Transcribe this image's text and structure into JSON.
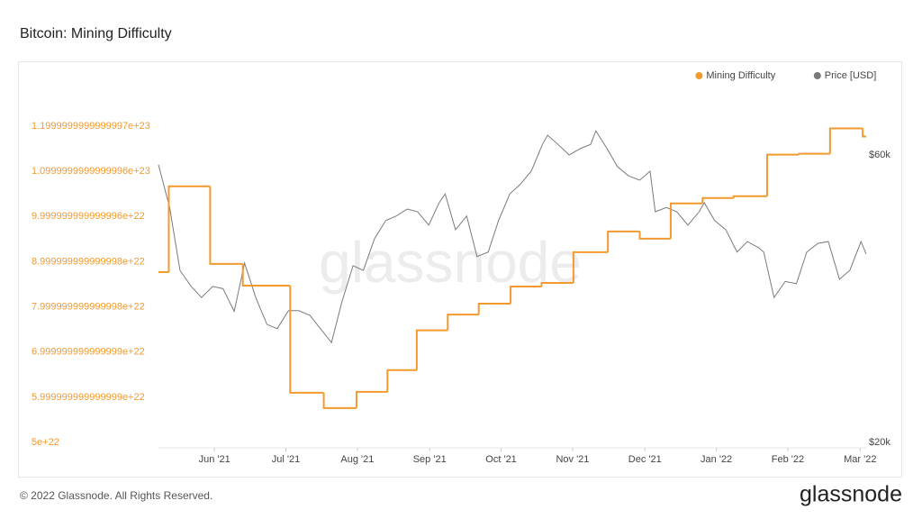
{
  "chart_data": {
    "type": "line",
    "title": "Bitcoin: Mining Difficulty",
    "watermark": "glassnode",
    "legend": "top-right",
    "ylim": [
      5e+22,
      1.2e+23
    ],
    "yticks": [
      {
        "value": 1.2e+23,
        "label": "1.1999999999999997e+23"
      },
      {
        "value": 1.1e+23,
        "label": "1.0999999999999996e+23"
      },
      {
        "value": 1e+23,
        "label": "9.999999999999996e+22"
      },
      {
        "value": 9e+22,
        "label": "8.999999999999998e+22"
      },
      {
        "value": 8e+22,
        "label": "7.999999999999998e+22"
      },
      {
        "value": 7e+22,
        "label": "6.999999999999999e+22"
      },
      {
        "value": 6e+22,
        "label": "5.999999999999999e+22"
      },
      5e+22
    ],
    "y2lim": [
      20000,
      67000
    ],
    "y2log": true,
    "y2ticks": [
      {
        "value": 60000,
        "label": "$60k"
      },
      {
        "value": 20000,
        "label": "$20k"
      }
    ],
    "xlim": [
      2021.352,
      2022.174
    ],
    "xticks": [
      {
        "value": 2021.417,
        "label": "Jun '21"
      },
      {
        "value": 2021.5,
        "label": "Jul '21"
      },
      {
        "value": 2021.583,
        "label": "Aug '21"
      },
      {
        "value": 2021.667,
        "label": "Sep '21"
      },
      {
        "value": 2021.75,
        "label": "Oct '21"
      },
      {
        "value": 2021.833,
        "label": "Nov '21"
      },
      {
        "value": 2021.917,
        "label": "Dec '21"
      },
      {
        "value": 2022.0,
        "label": "Jan '22"
      },
      {
        "value": 2022.083,
        "label": "Feb '22"
      },
      {
        "value": 2022.167,
        "label": "Mar '22"
      }
    ],
    "series": [
      {
        "name": "Mining Difficulty",
        "color": "#f29a2e",
        "step": "post",
        "x": [
          2021.352,
          2021.364,
          2021.412,
          2021.45,
          2021.505,
          2021.544,
          2021.582,
          2021.618,
          2021.652,
          2021.688,
          2021.724,
          2021.761,
          2021.797,
          2021.834,
          2021.874,
          2021.911,
          2021.947,
          2021.984,
          2022.02,
          2022.059,
          2022.096,
          2022.132,
          2022.17,
          2022.174
        ],
        "values": [
          8.77e+22,
          1.067e+23,
          8.95e+22,
          8.47e+22,
          6.1e+22,
          5.76e+22,
          6.12e+22,
          6.6e+22,
          7.48e+22,
          7.83e+22,
          8.07e+22,
          8.45e+22,
          8.53e+22,
          9.21e+22,
          9.67e+22,
          9.51e+22,
          1.029e+23,
          1.041e+23,
          1.045e+23,
          1.137e+23,
          1.139e+23,
          1.195e+23,
          1.177e+23,
          1.177e+23
        ]
      },
      {
        "name": "Price [USD]",
        "color": "#7a7a7a",
        "axis": "y2",
        "x": [
          2021.352,
          2021.365,
          2021.377,
          2021.39,
          2021.402,
          2021.415,
          2021.427,
          2021.44,
          2021.452,
          2021.465,
          2021.478,
          2021.49,
          2021.503,
          2021.515,
          2021.528,
          2021.54,
          2021.553,
          2021.565,
          2021.578,
          2021.59,
          2021.603,
          2021.616,
          2021.628,
          2021.641,
          2021.653,
          2021.666,
          2021.678,
          2021.685,
          2021.697,
          2021.71,
          2021.722,
          2021.735,
          2021.747,
          2021.76,
          2021.772,
          2021.785,
          2021.798,
          2021.804,
          2021.816,
          2021.829,
          2021.842,
          2021.854,
          2021.86,
          2021.873,
          2021.885,
          2021.898,
          2021.911,
          2021.923,
          2021.929,
          2021.942,
          2021.954,
          2021.967,
          2021.98,
          2021.986,
          2021.998,
          2022.011,
          2022.024,
          2022.036,
          2022.049,
          2022.055,
          2022.067,
          2022.08,
          2022.093,
          2022.105,
          2022.118,
          2022.13,
          2022.143,
          2022.155,
          2022.168,
          2022.174
        ],
        "values": [
          57800,
          49100,
          38600,
          36300,
          34800,
          36300,
          36000,
          33000,
          39700,
          34800,
          31400,
          30900,
          33100,
          33100,
          32500,
          30900,
          29300,
          34200,
          39300,
          38600,
          43600,
          46700,
          47500,
          48800,
          48300,
          45900,
          50000,
          51700,
          45100,
          47500,
          40700,
          41400,
          46700,
          51700,
          53600,
          56400,
          62500,
          64700,
          62500,
          60000,
          61500,
          62500,
          65800,
          61500,
          57400,
          55400,
          54500,
          56400,
          48300,
          49100,
          48300,
          45900,
          48300,
          50000,
          46700,
          45100,
          41400,
          43100,
          42100,
          41400,
          34800,
          37000,
          36700,
          41400,
          42800,
          43100,
          37300,
          38600,
          43100,
          41100
        ]
      }
    ]
  },
  "footer": {
    "copyright": "© 2022 Glassnode. All Rights Reserved.",
    "logo": "glassnode"
  }
}
